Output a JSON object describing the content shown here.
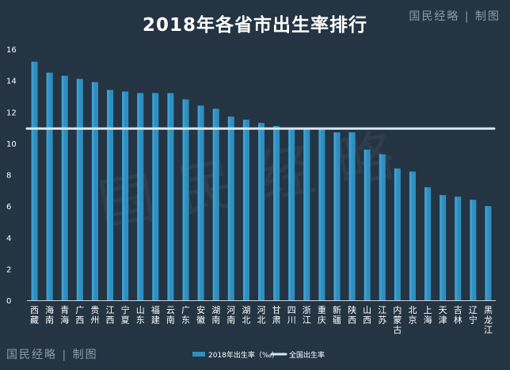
{
  "header": {
    "title": "2018年各省市出生率排行",
    "brand": "国民经略 | 制图"
  },
  "footer": {
    "brand": "国民经略 | 制图"
  },
  "chart_data": {
    "type": "bar",
    "title": "2018年各省市出生率排行",
    "categories": [
      "西藏",
      "海南",
      "青海",
      "广西",
      "贵州",
      "江西",
      "宁夏",
      "山东",
      "福建",
      "云南",
      "广东",
      "安徽",
      "湖南",
      "河南",
      "湖北",
      "河北",
      "甘肃",
      "四川",
      "浙江",
      "重庆",
      "新疆",
      "陕西",
      "山西",
      "江苏",
      "内蒙古",
      "北京",
      "上海",
      "天津",
      "吉林",
      "辽宁",
      "黑龙江"
    ],
    "series": [
      {
        "name": "2018年出生率（‰）",
        "values": [
          15.2,
          14.5,
          14.3,
          14.1,
          13.9,
          13.4,
          13.3,
          13.2,
          13.2,
          13.2,
          12.8,
          12.4,
          12.2,
          11.7,
          11.5,
          11.3,
          11.1,
          11.0,
          11.0,
          11.0,
          10.7,
          10.7,
          9.6,
          9.3,
          8.4,
          8.2,
          7.2,
          6.7,
          6.6,
          6.4,
          6.0
        ]
      }
    ],
    "reference_line": {
      "name": "全国出生率",
      "value": 10.94
    },
    "ylim": [
      0,
      16
    ],
    "yticks": [
      0,
      2,
      4,
      6,
      8,
      10,
      12,
      14,
      16
    ],
    "xlabel": "",
    "ylabel": "",
    "grid": false,
    "legend_position": "bottom-center",
    "colors": {
      "bar": "#2e8fc0",
      "bar_highlight": "#4fb6e6",
      "reference_line": "#d8e6ef",
      "background": "#243443",
      "text": "#ffffff",
      "axis": "#c7d2da"
    },
    "watermark": "国民经略"
  }
}
